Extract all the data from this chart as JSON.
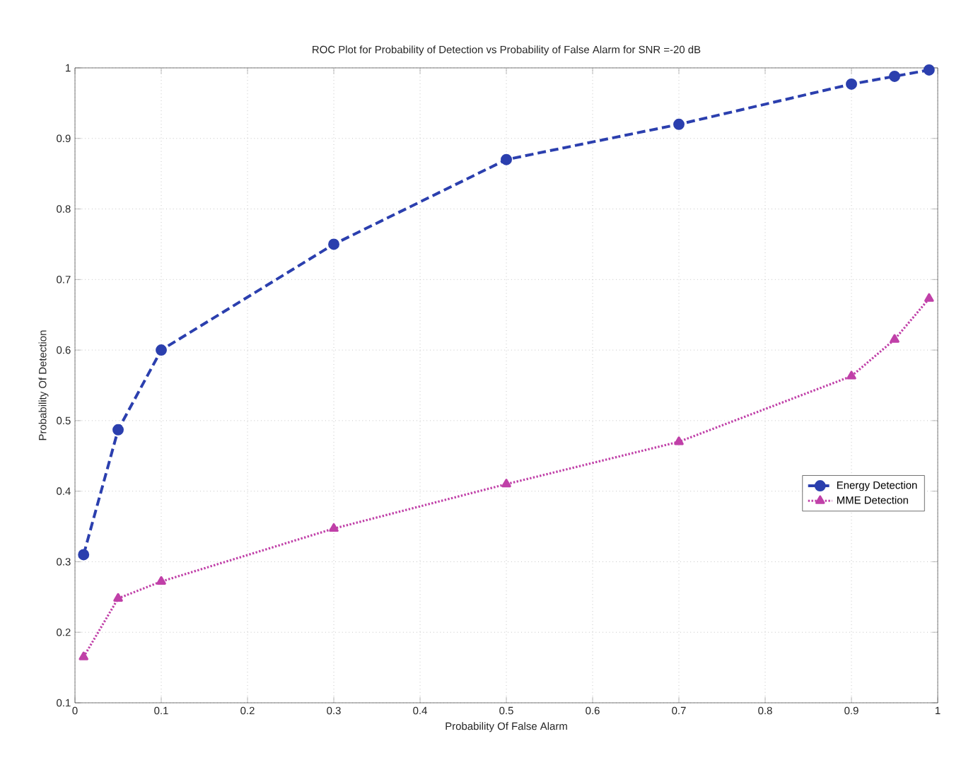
{
  "chart_data": {
    "type": "line",
    "title": "ROC Plot for  Probability of Detection vs Probability of False Alarm for SNR =-20 dB",
    "xlabel": "Probability Of False Alarm",
    "ylabel": "Probability Of Detection",
    "xlim": [
      0,
      1
    ],
    "ylim": [
      0.1,
      1
    ],
    "xticks": [
      0,
      0.1,
      0.2,
      0.3,
      0.4,
      0.5,
      0.6,
      0.7,
      0.8,
      0.9,
      1
    ],
    "yticks": [
      0.1,
      0.2,
      0.3,
      0.4,
      0.5,
      0.6,
      0.7,
      0.8,
      0.9,
      1
    ],
    "grid": true,
    "legend": "right",
    "series": [
      {
        "name": "Energy Detection",
        "color": "#2b3fae",
        "marker": "circle",
        "line_style": "dashed",
        "x": [
          0.01,
          0.05,
          0.1,
          0.3,
          0.5,
          0.7,
          0.9,
          0.95,
          0.99
        ],
        "values": [
          0.31,
          0.487,
          0.6,
          0.75,
          0.87,
          0.92,
          0.977,
          0.988,
          0.997
        ]
      },
      {
        "name": "MME Detection",
        "color": "#c040a8",
        "marker": "triangle",
        "line_style": "dotted",
        "x": [
          0.01,
          0.05,
          0.1,
          0.3,
          0.5,
          0.7,
          0.9,
          0.95,
          0.99
        ],
        "values": [
          0.165,
          0.248,
          0.272,
          0.347,
          0.41,
          0.47,
          0.563,
          0.615,
          0.673
        ]
      }
    ]
  }
}
